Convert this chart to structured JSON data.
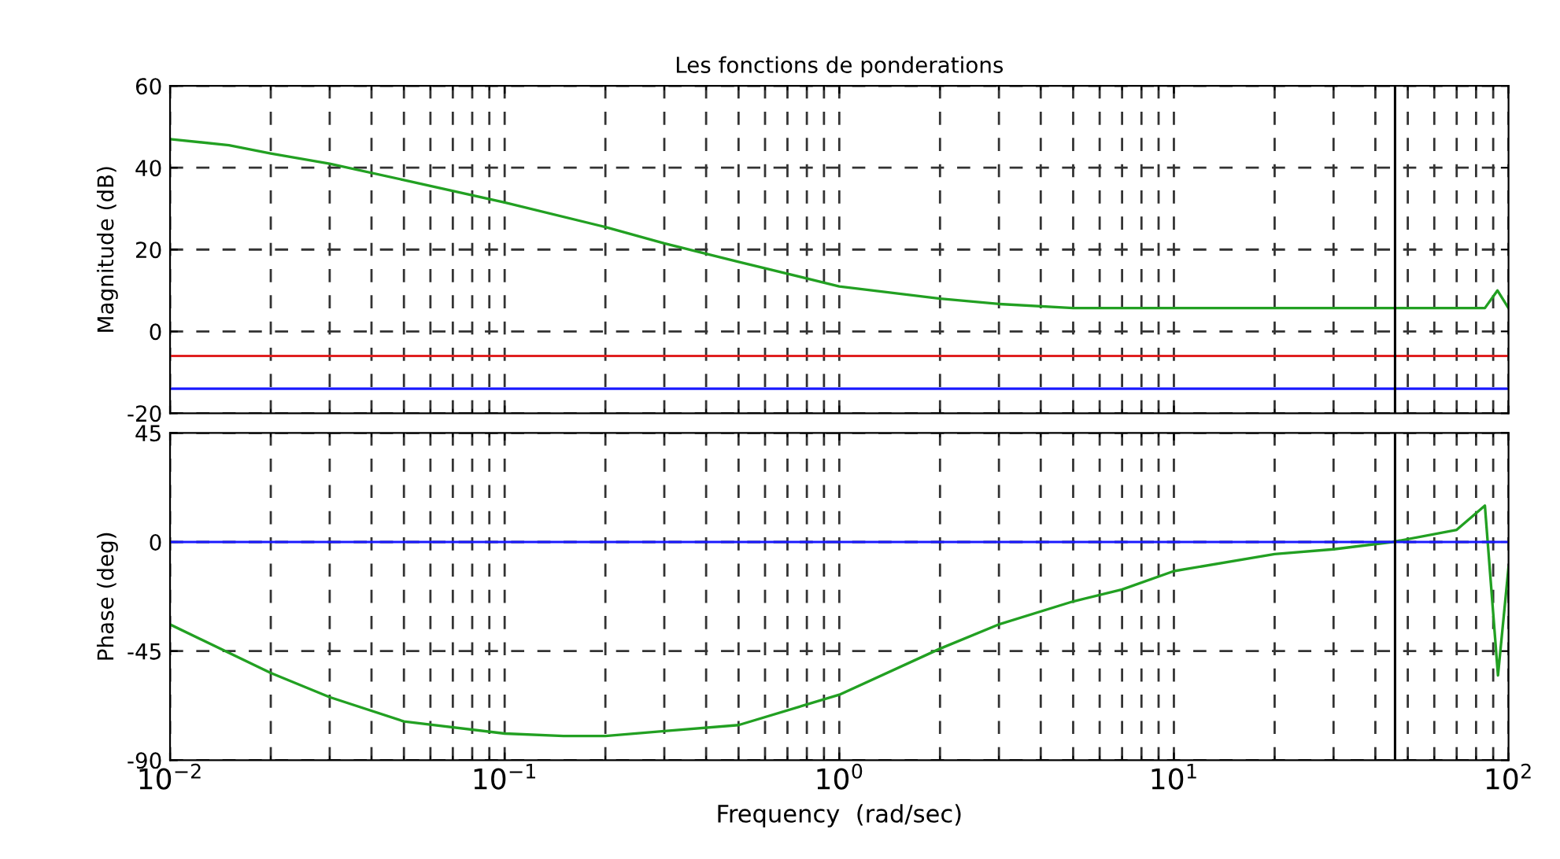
{
  "chart_data": [
    {
      "type": "line",
      "title": "Les fonctions de ponderations",
      "ylabel": "Magnitude (dB)",
      "log": "x",
      "grid": true,
      "tick_labels": "y",
      "xlim": [
        0.01,
        100
      ],
      "ylim": [
        -20,
        60
      ],
      "yticks": [
        -20,
        0,
        20,
        40,
        60
      ],
      "series": [
        {
          "color": "#22a022",
          "x": [
            0.01,
            0.015,
            0.02,
            0.03,
            0.05,
            0.1,
            0.2,
            0.3,
            0.5,
            1,
            2,
            3,
            5,
            10,
            20,
            45,
            85,
            92.7,
            100
          ],
          "values": [
            47,
            45.5,
            43.5,
            41,
            37,
            31.5,
            25.5,
            21.5,
            17,
            11,
            8,
            6.7,
            5.7,
            5.7,
            5.7,
            5.7,
            5.7,
            10,
            5.7
          ]
        }
      ],
      "ref_lines": [
        {
          "axis": "y",
          "value": -6,
          "color": "#e02020"
        },
        {
          "axis": "y",
          "value": -14,
          "color": "#1a1aff"
        },
        {
          "axis": "x",
          "value": 45.8,
          "color": "#000000"
        }
      ]
    },
    {
      "type": "line",
      "xlabel": "Frequency  (rad/sec)",
      "ylabel": "Phase (deg)",
      "log": "x",
      "grid": true,
      "xlim": [
        0.01,
        100
      ],
      "ylim": [
        -90,
        45
      ],
      "yticks": [
        -90,
        -45,
        0,
        45
      ],
      "xticks": [
        {
          "value": 0.01,
          "label": "10$^{−2}$"
        },
        {
          "value": 0.1,
          "label": "10$^{−1}$"
        },
        {
          "value": 1,
          "label": "10$^{0}$"
        },
        {
          "value": 10,
          "label": "10$^{1}$"
        },
        {
          "value": 100,
          "label": "10$^{2}$"
        }
      ],
      "series": [
        {
          "color": "#22a022",
          "x": [
            0.01,
            0.02,
            0.03,
            0.05,
            0.1,
            0.15,
            0.2,
            0.3,
            0.5,
            1,
            2,
            3,
            5,
            7,
            10,
            20,
            30,
            45,
            70,
            85,
            93,
            100
          ],
          "values": [
            -34,
            -54,
            -64,
            -74,
            -79,
            -80,
            -80,
            -78,
            -75.5,
            -63,
            -44,
            -34,
            -24.5,
            -19.6,
            -12,
            -5,
            -3,
            0,
            5,
            15,
            -55,
            -10.5
          ]
        }
      ],
      "ref_lines": [
        {
          "axis": "y",
          "value": 0,
          "color": "#1a1aff"
        },
        {
          "axis": "x",
          "value": 45.8,
          "color": "#000000"
        }
      ]
    }
  ]
}
